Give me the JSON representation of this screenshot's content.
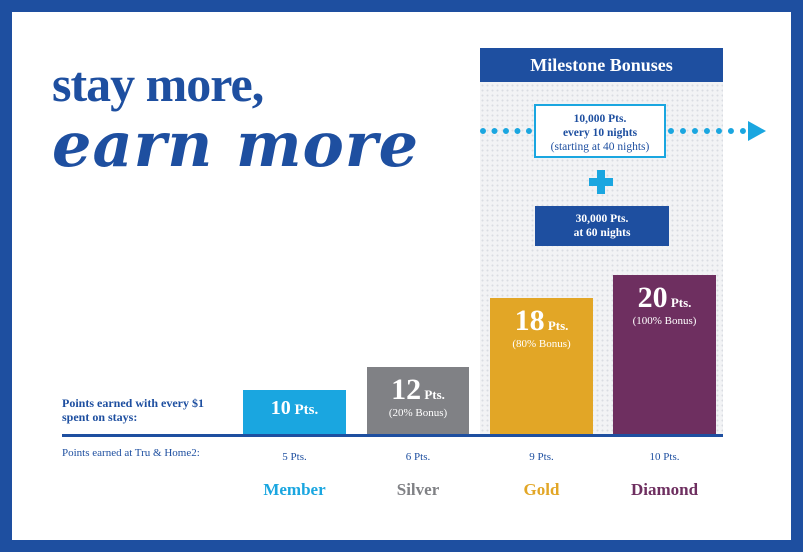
{
  "headline": {
    "line1": "stay more,",
    "line2": "earn more"
  },
  "milestone": {
    "title": "Milestone Bonuses",
    "bonus1": {
      "line1": "10,000 Pts.",
      "line2": "every 10 nights",
      "line3": "(starting at 40 nights)"
    },
    "bonus2": {
      "line1": "30,000 Pts.",
      "line2": "at 60 nights"
    }
  },
  "labels": {
    "points_per_dollar": "Points earned with every $1 spent on stays:",
    "tru_home2": "Points earned at Tru & Home2:"
  },
  "chart_data": {
    "type": "bar",
    "categories": [
      "Member",
      "Silver",
      "Gold",
      "Diamond"
    ],
    "values": [
      10,
      12,
      18,
      20
    ],
    "bar_labels": [
      "10",
      "12",
      "18",
      "20"
    ],
    "unit": "Pts.",
    "bonuses": [
      "",
      "(20% Bonus)",
      "(80% Bonus)",
      "(100% Bonus)"
    ],
    "tru_home2_points": [
      "5 Pts.",
      "6 Pts.",
      "9 Pts.",
      "10 Pts."
    ],
    "colors": [
      "#1aa6e0",
      "#808185",
      "#e2a626",
      "#6e2f60"
    ],
    "ylim": [
      0,
      20
    ]
  },
  "colors": {
    "brand": "#1e4fa0",
    "accent": "#1aa6e0"
  }
}
